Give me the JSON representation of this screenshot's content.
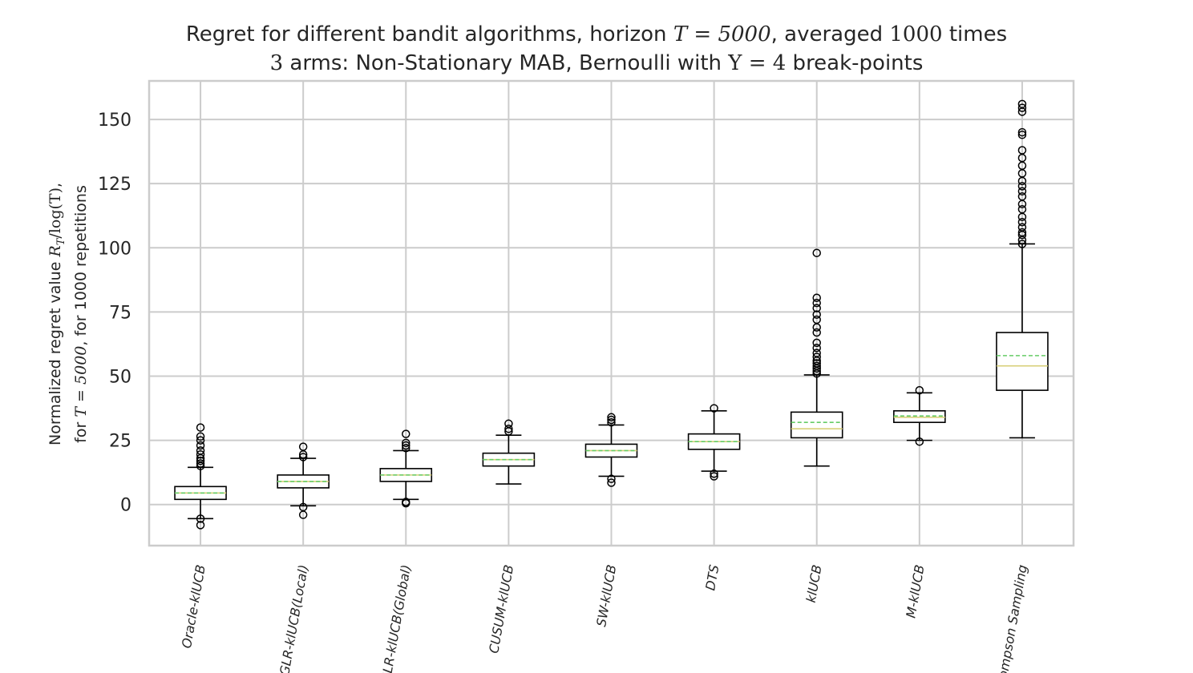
{
  "title_line1_parts": [
    "Regret for different bandit algorithms, horizon ",
    "T = 5000",
    ", averaged ",
    "1000",
    " times"
  ],
  "title_line2_parts": [
    "3",
    " arms: Non-Stationary MAB, Bernoulli with ",
    "Υ = 4",
    " break-points"
  ],
  "ylabel_line1_parts": [
    "Normalized regret value ",
    "R",
    "T",
    "/log(T)",
    ","
  ],
  "ylabel_line2_parts": [
    "for ",
    "T = 5000",
    ", for 1000 repetitions"
  ],
  "colors": {
    "grid": "#cccccc",
    "box": "#000000",
    "median": "#d8d07a",
    "mean": "#66cc66",
    "frame": "#cccccc"
  },
  "chart_data": {
    "type": "boxplot",
    "ylim": [
      -16,
      165
    ],
    "yticks": [
      0,
      25,
      50,
      75,
      100,
      125,
      150
    ],
    "grid": true,
    "categories": [
      "Oracle-klUCB",
      "GLR-klUCB(Local)",
      "GLR-klUCB(Global)",
      "CUSUM-klUCB",
      "SW-klUCB",
      "DTS",
      "klUCB",
      "M-klUCB",
      "Thompson Sampling"
    ],
    "boxes": [
      {
        "whisker_low": -5.5,
        "q1": 2,
        "median": 4.5,
        "mean": 4.5,
        "q3": 7,
        "whisker_high": 14.5,
        "outliers": [
          -5.5,
          -8,
          15,
          16,
          17,
          18,
          19.5,
          21,
          23,
          25,
          26.5,
          30
        ]
      },
      {
        "whisker_low": -0.5,
        "q1": 6.5,
        "median": 9,
        "mean": 9,
        "q3": 11.5,
        "whisker_high": 18,
        "outliers": [
          -1,
          -4,
          18.5,
          19.5,
          22.5
        ]
      },
      {
        "whisker_low": 2,
        "q1": 9,
        "median": 11.5,
        "mean": 11.5,
        "q3": 14,
        "whisker_high": 21,
        "outliers": [
          0.5,
          1,
          22,
          23,
          24,
          27.5
        ]
      },
      {
        "whisker_low": 8,
        "q1": 15,
        "median": 17.5,
        "mean": 17.5,
        "q3": 20,
        "whisker_high": 27,
        "outliers": [
          28.5,
          29.5,
          31.5
        ]
      },
      {
        "whisker_low": 11,
        "q1": 18.5,
        "median": 21,
        "mean": 21,
        "q3": 23.5,
        "whisker_high": 31,
        "outliers": [
          8.5,
          10,
          32,
          33,
          34
        ]
      },
      {
        "whisker_low": 13,
        "q1": 21.5,
        "median": 24.5,
        "mean": 24.5,
        "q3": 27.5,
        "whisker_high": 36.5,
        "outliers": [
          11,
          12,
          37.5
        ]
      },
      {
        "whisker_low": 15,
        "q1": 26,
        "median": 29.5,
        "mean": 32,
        "q3": 36,
        "whisker_high": 50.5,
        "outliers": [
          51,
          52,
          53,
          54,
          55,
          56,
          57.5,
          59,
          61,
          63,
          67,
          69,
          72,
          74,
          76.5,
          78.5,
          80.5,
          98
        ]
      },
      {
        "whisker_low": 25,
        "q1": 32,
        "median": 34,
        "mean": 34.5,
        "q3": 36.5,
        "whisker_high": 43.5,
        "outliers": [
          24.5,
          44.5
        ]
      },
      {
        "whisker_low": 26,
        "q1": 44.5,
        "median": 54,
        "mean": 58,
        "q3": 67,
        "whisker_high": 101.5,
        "outliers": [
          101.5,
          103,
          105,
          106,
          108,
          110,
          112,
          115,
          117,
          120,
          122,
          124,
          126,
          129,
          132,
          135,
          138,
          144,
          145,
          153,
          154.5,
          156
        ]
      }
    ]
  }
}
